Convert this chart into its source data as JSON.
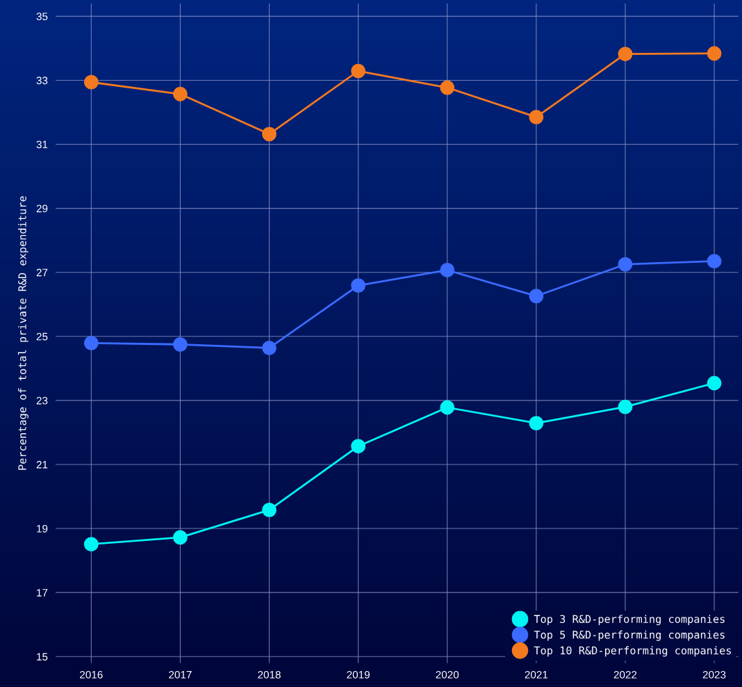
{
  "chart_data": {
    "type": "line",
    "ylabel": "Percentage of total private R&D expenditure",
    "x": [
      2016,
      2017,
      2018,
      2019,
      2020,
      2021,
      2022,
      2023
    ],
    "series": [
      {
        "name": "Top 3 R&D-performing companies",
        "color": "#00f5f5",
        "values": [
          18.51,
          18.72,
          19.58,
          21.57,
          22.78,
          22.29,
          22.8,
          23.54
        ]
      },
      {
        "name": "Top 5 R&D-performing companies",
        "color": "#3b6bff",
        "values": [
          24.79,
          24.75,
          24.64,
          26.59,
          27.07,
          26.26,
          27.25,
          27.35
        ]
      },
      {
        "name": "Top 10 R&D-performing companies",
        "color": "#f47a20",
        "values": [
          32.94,
          32.57,
          31.32,
          33.29,
          32.77,
          31.85,
          33.82,
          33.84
        ]
      }
    ],
    "xlim": [
      2015.6,
      2023.27
    ],
    "xticks": [
      2016,
      2017,
      2018,
      2019,
      2020,
      2021,
      2022,
      2023
    ],
    "ylim": [
      14.8,
      35.4
    ],
    "yticks": [
      15,
      17,
      19,
      21,
      23,
      25,
      27,
      29,
      31,
      33,
      35
    ],
    "grid": true,
    "legend": "bottom right",
    "marker": "circle",
    "line_style": "solid"
  }
}
